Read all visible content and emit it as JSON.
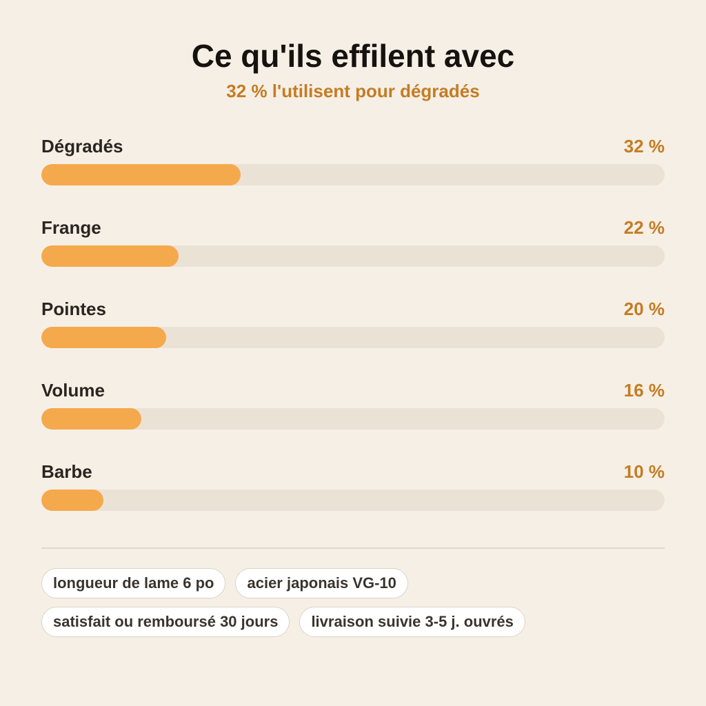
{
  "header": {
    "title": "Ce qu'ils effilent avec",
    "subtitle": "32 % l'utilisent pour dégradés"
  },
  "colors": {
    "accent": "#c47c24",
    "bar_fill": "#f5a94d",
    "bar_track": "#ebe2d6",
    "background": "#f6efe5"
  },
  "chart_data": {
    "type": "bar",
    "orientation": "horizontal",
    "categories": [
      "Dégradés",
      "Frange",
      "Pointes",
      "Volume",
      "Barbe"
    ],
    "values": [
      32,
      22,
      20,
      16,
      10
    ],
    "value_labels": [
      "32 %",
      "22 %",
      "20 %",
      "16 %",
      "10 %"
    ],
    "unit": "%",
    "xlim": [
      0,
      100
    ],
    "grid": false,
    "legend": "none"
  },
  "tags": [
    [
      "longueur de lame 6 po",
      "acier japonais VG-10"
    ],
    [
      "satisfait ou remboursé 30 jours",
      "livraison suivie 3-5 j. ouvrés"
    ]
  ]
}
